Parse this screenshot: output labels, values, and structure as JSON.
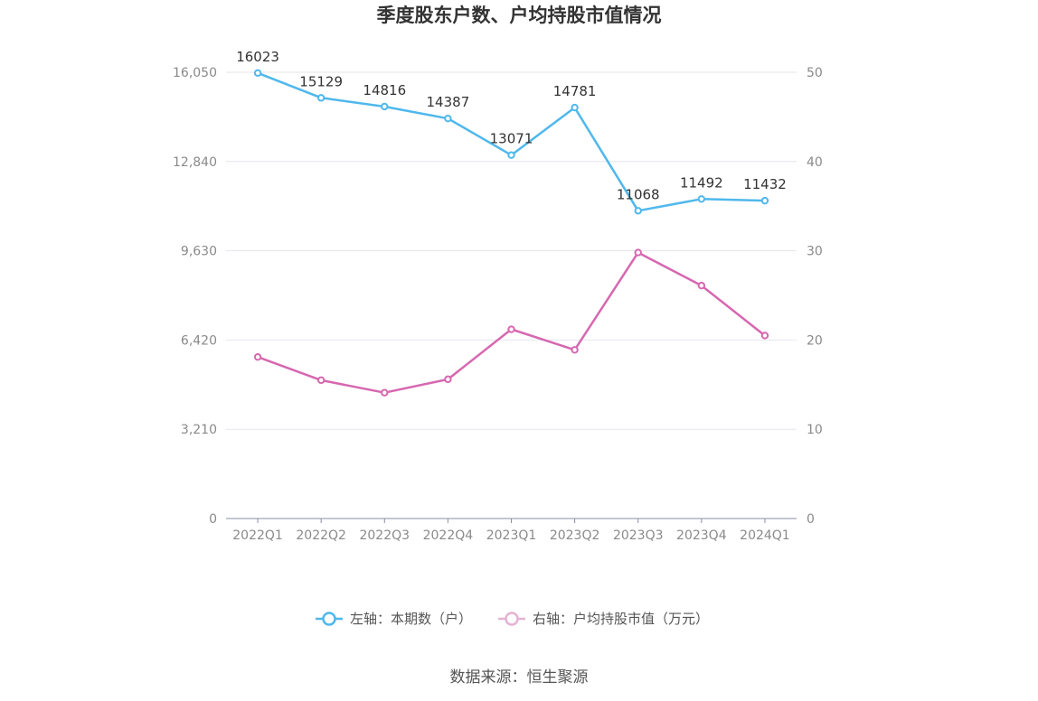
{
  "chart_data": {
    "type": "line",
    "title": "季度股东户数、户均持股市值情况",
    "categories": [
      "2022Q1",
      "2022Q2",
      "2022Q3",
      "2022Q4",
      "2023Q1",
      "2023Q2",
      "2023Q3",
      "2023Q4",
      "2024Q1"
    ],
    "y_left": {
      "ticks": [
        0,
        3210,
        6420,
        9630,
        12840,
        16050
      ],
      "tick_labels": [
        "0",
        "3,210",
        "6,420",
        "9,630",
        "12,840",
        "16,050"
      ],
      "ylim": [
        0,
        16050
      ]
    },
    "y_right": {
      "ticks": [
        0,
        10,
        20,
        30,
        40,
        50
      ],
      "tick_labels": [
        "0",
        "10",
        "20",
        "30",
        "40",
        "50"
      ],
      "ylim": [
        0,
        50
      ]
    },
    "grid": true,
    "legend_position": "bottom",
    "series": [
      {
        "name": "左轴：本期数（户）",
        "axis": "left",
        "color": "#4fb8ec",
        "values": [
          16023,
          15129,
          14816,
          14387,
          13071,
          14781,
          11068,
          11492,
          11432
        ],
        "data_labels": [
          "16023",
          "15129",
          "14816",
          "14387",
          "13071",
          "14781",
          "11068",
          "11492",
          "11432"
        ]
      },
      {
        "name": "右轴：户均持股市值（万元）",
        "axis": "right",
        "color": "#d668b0",
        "values": [
          18.1,
          15.5,
          14.1,
          15.6,
          21.2,
          18.9,
          29.8,
          26.1,
          20.5
        ]
      }
    ],
    "source": "数据来源：恒生聚源"
  }
}
